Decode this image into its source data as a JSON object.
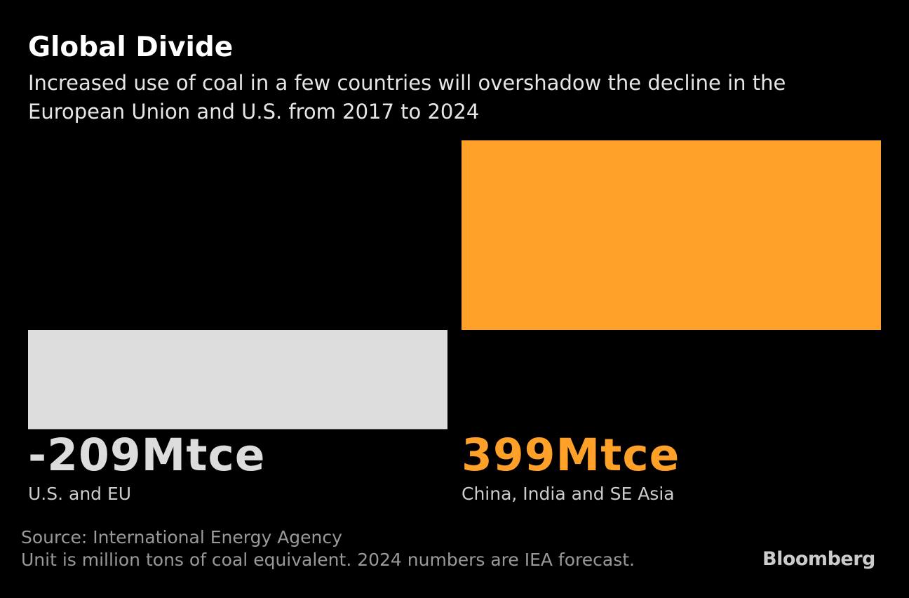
{
  "header": {
    "title": "Global Divide",
    "subtitle": "Increased use of coal in a few countries will overshadow the decline in the European Union and U.S. from 2017 to 2024"
  },
  "chart_data": {
    "type": "bar",
    "unit": "Mtce",
    "categories": [
      "U.S. and EU",
      "China, India and SE Asia"
    ],
    "values": [
      -209,
      399
    ],
    "value_labels": [
      "-209Mtce",
      "399Mtce"
    ],
    "colors": [
      "#dcdcdc",
      "#ffa028"
    ]
  },
  "footer": {
    "source": "Source: International Energy Agency",
    "note": "Unit is million tons of coal equivalent. 2024 numbers are IEA forecast.",
    "logo": "Bloomberg"
  }
}
